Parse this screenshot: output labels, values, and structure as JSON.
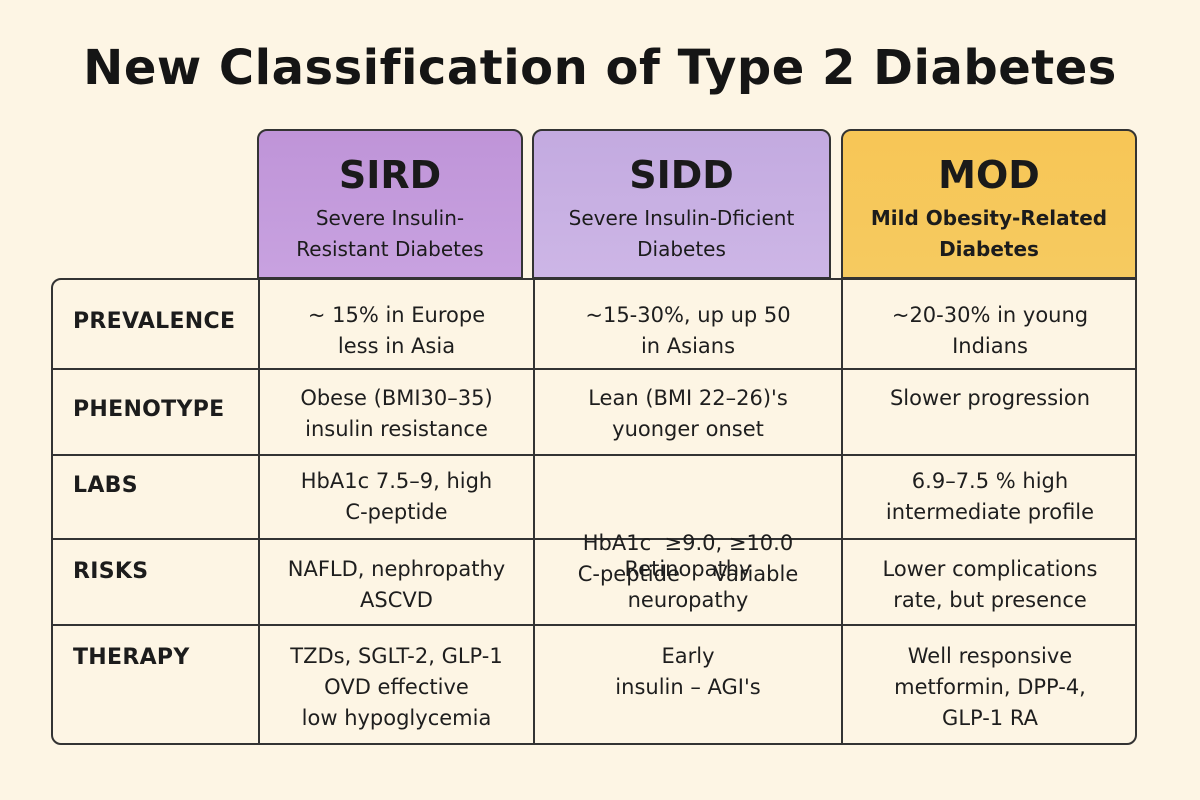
{
  "title": "New Classification of Type 2 Diabetes",
  "columns": [
    {
      "abbr": "SIRD",
      "full": "Severe Insulin-Resistant Diabetes",
      "color": "#c39ad9"
    },
    {
      "abbr": "SIDD",
      "full": "Severe Insulin-Dficient Diabetes",
      "color": "#c8b0e3"
    },
    {
      "abbr": "MOD",
      "full": "Mild Obesity-Related Diabetes",
      "color": "#f7c85a"
    }
  ],
  "rows": [
    {
      "label": "PREVALENCE",
      "cells": [
        [
          "~ 15% in Europe",
          "less in Asia"
        ],
        [
          "~15-30%, up up 50",
          "in Asians"
        ],
        [
          "~20-30% in young",
          "Indians"
        ]
      ]
    },
    {
      "label": "PHENOTYPE",
      "cells": [
        [
          "Obese (BMI30–35)",
          "insulin resistance"
        ],
        [
          "Lean (BMI 22–26)'s",
          "yuonger onset"
        ],
        [
          "Slower progression"
        ]
      ]
    },
    {
      "label": "LABS",
      "cells": [
        [
          "HbA1c  7.5–9, high",
          "C-peptide"
        ],
        [
          "HbA1c  ≥9.0, ≥10.0",
          "C-peptide     Variable"
        ],
        [
          "6.9–7.5 % high",
          "intermediate profile"
        ]
      ]
    },
    {
      "label": "RISKS",
      "cells": [
        [
          "NAFLD, nephropathy",
          "ASCVD"
        ],
        [
          "Retinopathy",
          "neuropathy"
        ],
        [
          "Lower complications",
          "rate, but presence"
        ]
      ]
    },
    {
      "label": "THERAPY",
      "cells": [
        [
          "TZDs, SGLT-2, GLP-1",
          "OVD effective",
          "low hypoglycemia"
        ],
        [
          "Early",
          "insulin – AGI's"
        ],
        [
          "Well responsive",
          "metformin, DPP-4,",
          "GLP-1 RA"
        ]
      ]
    }
  ]
}
